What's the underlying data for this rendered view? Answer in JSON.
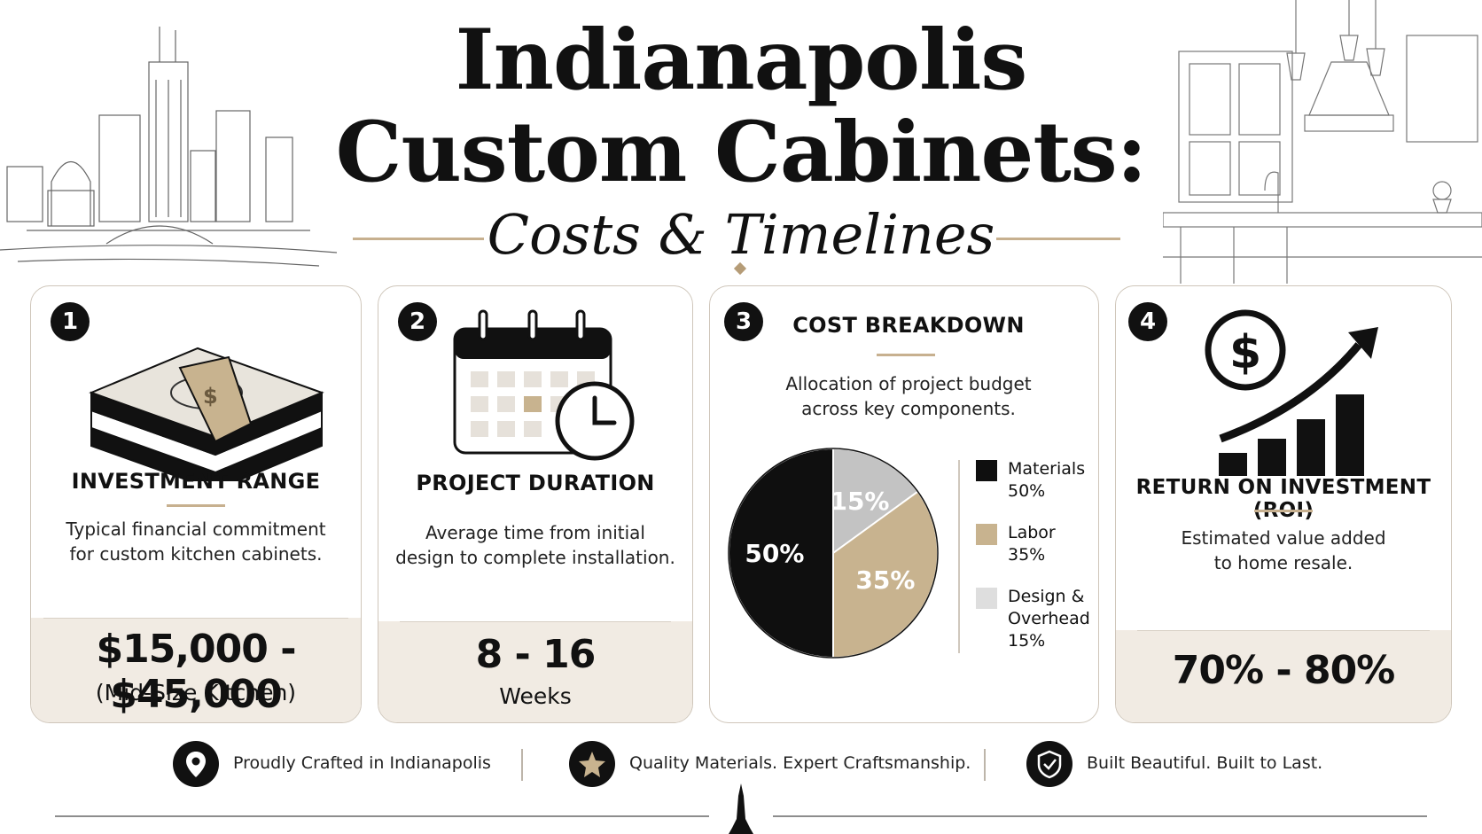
{
  "header": {
    "title_line1": "Indianapolis",
    "title_line2": "Custom Cabinets:",
    "subtitle": "Costs & Timelines"
  },
  "cards": [
    {
      "number": "1",
      "heading": "INVESTMENT RANGE",
      "description": [
        "Typical financial commitment",
        "for custom kitchen cabinets."
      ],
      "value": "$15,000 - $45,000",
      "value_note": "(Mid-Size Kitchen)",
      "icon": "money-stack-icon"
    },
    {
      "number": "2",
      "heading": "PROJECT DURATION",
      "description": [
        "Average time from initial",
        "design to complete installation."
      ],
      "value": "8 - 16",
      "value_note": "Weeks",
      "icon": "calendar-clock-icon"
    },
    {
      "number": "3",
      "heading": "COST BREAKDOWN",
      "description": [
        "Allocation of project budget",
        "across key components."
      ]
    },
    {
      "number": "4",
      "heading": "RETURN ON INVESTMENT (ROI)",
      "description": [
        "Estimated value added",
        "to home resale."
      ],
      "value": "70% - 80%",
      "icon": "dollar-growth-icon"
    }
  ],
  "chart_data": {
    "type": "pie",
    "title": "COST BREAKDOWN",
    "categories": [
      "Materials",
      "Labor",
      "Design & Overhead"
    ],
    "values": [
      50,
      35,
      15
    ],
    "slice_labels": [
      "50%",
      "35%",
      "15%"
    ],
    "legend": [
      {
        "line1": "Materials",
        "line2": "",
        "value": "50%"
      },
      {
        "line1": "Labor",
        "line2": "",
        "value": "35%"
      },
      {
        "line1": "Design &",
        "line2": "Overhead",
        "value": "15%"
      }
    ],
    "colors": [
      "#0f0f0f",
      "#c8b38f",
      "#c3c3c3"
    ],
    "legend_colors": [
      "#0f0f0f",
      "#c8b38f",
      "#dedede"
    ],
    "legend_placement": "right"
  },
  "footer": {
    "items": [
      {
        "label": "Proudly Crafted in Indianapolis",
        "icon": "location-pin-icon"
      },
      {
        "label": "Quality Materials. Expert Craftsmanship.",
        "icon": "star-icon"
      },
      {
        "label": "Built Beautiful. Built to Last.",
        "icon": "shield-check-icon"
      }
    ]
  },
  "colors": {
    "accent": "#c7b08f",
    "card_footer_bg": "#f1ebe3",
    "ink": "#111111"
  }
}
